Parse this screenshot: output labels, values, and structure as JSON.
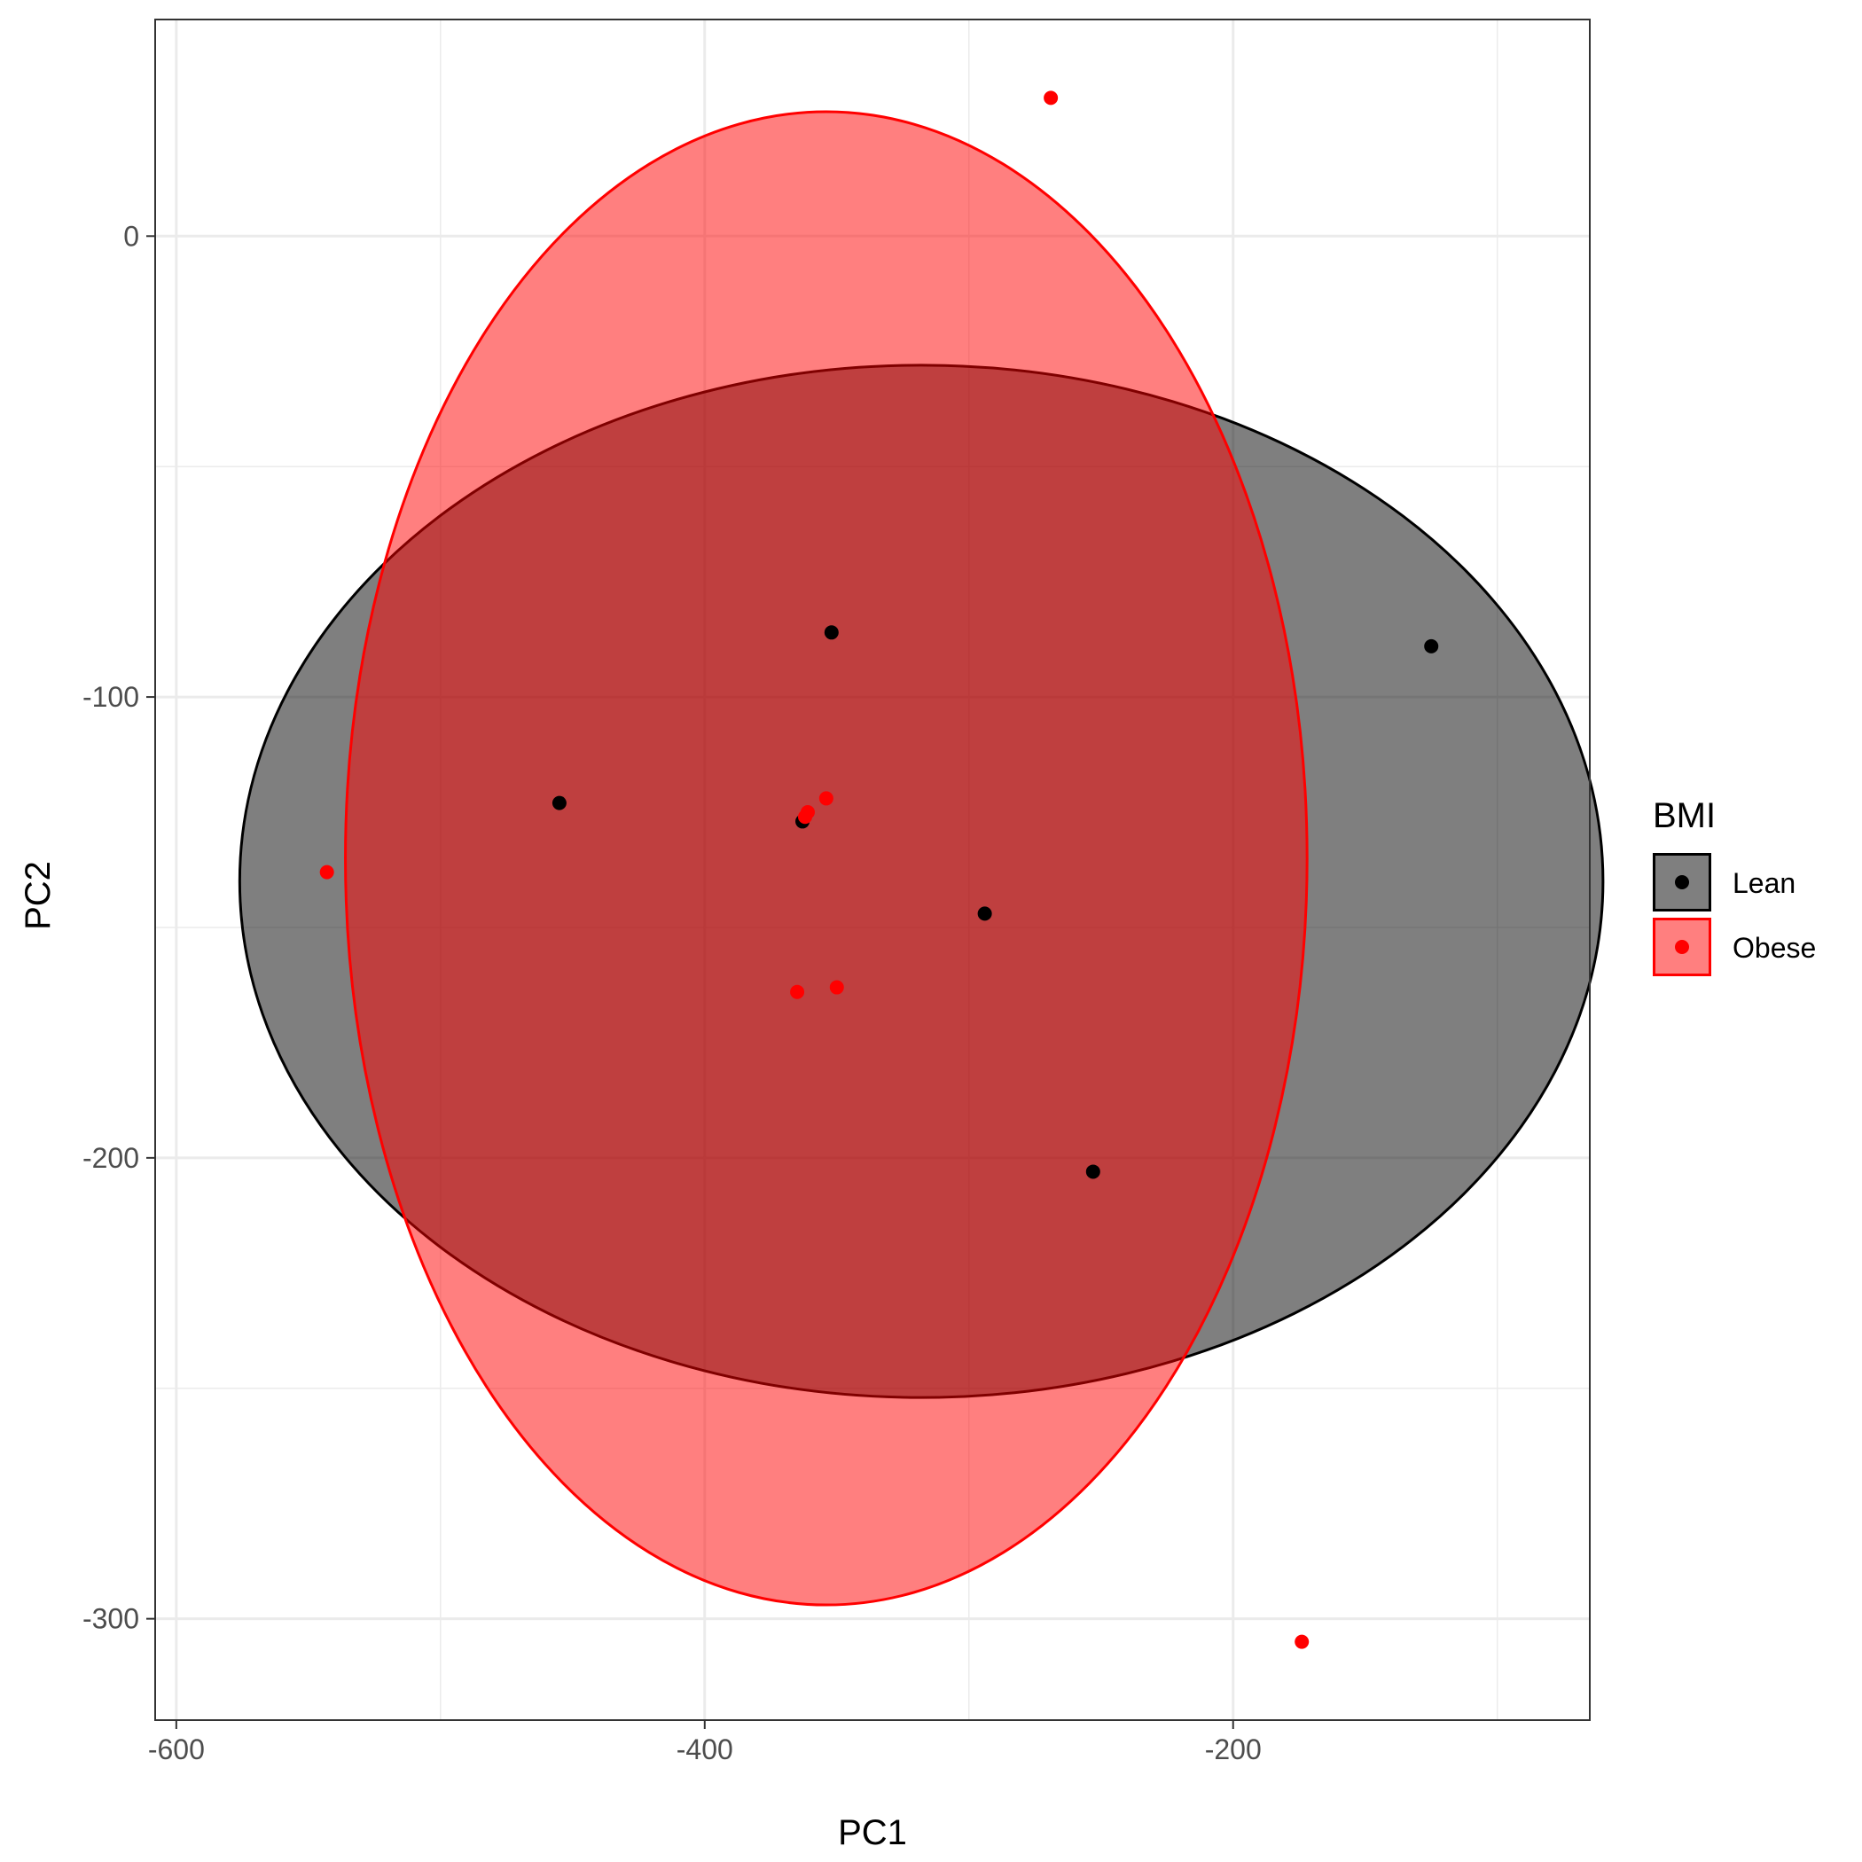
{
  "chart_data": {
    "type": "scatter",
    "title": "",
    "xlabel": "PC1",
    "ylabel": "PC2",
    "xlim": [
      -608,
      -65
    ],
    "ylim": [
      -322,
      47
    ],
    "x_ticks": [
      -600,
      -400,
      -200
    ],
    "y_ticks": [
      0,
      -100,
      -200,
      -300
    ],
    "x_tick_labels": [
      "-600",
      "-400",
      "-200"
    ],
    "y_tick_labels": [
      "0",
      "-100",
      "-200",
      "-300"
    ],
    "grid": true,
    "legend": {
      "title": "BMI",
      "placement": "right"
    },
    "series": [
      {
        "name": "Lean",
        "color": "#000000",
        "ellipse_fill": "#000000",
        "ellipse_stroke": "#000000",
        "ellipse": {
          "center": [
            -318,
            -140
          ],
          "radius_x": 258,
          "radius_y": 112
        },
        "points": [
          [
            -352,
            -86
          ],
          [
            -455,
            -123
          ],
          [
            -363,
            -127
          ],
          [
            -294,
            -147
          ],
          [
            -253,
            -203
          ],
          [
            -125,
            -89
          ]
        ]
      },
      {
        "name": "Obese",
        "color": "#ff0000",
        "ellipse_fill": "#ff0000",
        "ellipse_stroke": "#ff0000",
        "ellipse": {
          "center": [
            -354,
            -135
          ],
          "radius_x": 182,
          "radius_y": 162
        },
        "points": [
          [
            -269,
            30
          ],
          [
            -543,
            -138
          ],
          [
            -354,
            -122
          ],
          [
            -361,
            -125
          ],
          [
            -362,
            -126
          ],
          [
            -365,
            -164
          ],
          [
            -350,
            -163
          ],
          [
            -174,
            -305
          ]
        ]
      }
    ]
  }
}
